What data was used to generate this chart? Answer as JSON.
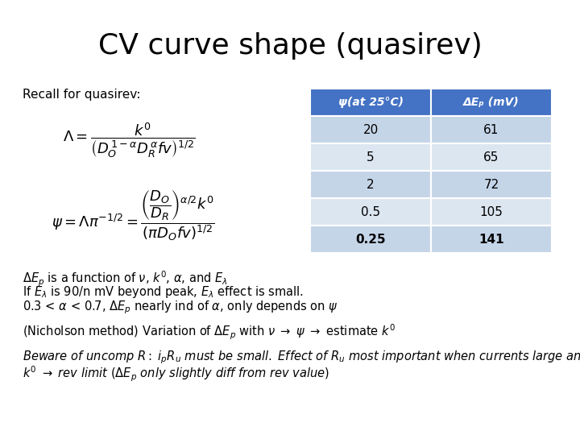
{
  "title": "CV curve shape (quasirev)",
  "title_fontsize": 26,
  "title_fontweight": "normal",
  "background_color": "#ffffff",
  "recall_label": "Recall for quasirev:",
  "table_header_col1": "ψ(at 25°C)",
  "table_header_col2": "ΔEₚ (mV)",
  "table_data": [
    [
      "20",
      "61"
    ],
    [
      "5",
      "65"
    ],
    [
      "2",
      "72"
    ],
    [
      "0.5",
      "105"
    ],
    [
      "0.25",
      "141"
    ]
  ],
  "table_header_bg": "#4472C4",
  "table_header_fg": "#ffffff",
  "table_row_bg": "#c5d5e8",
  "table_row_bg2": "#dce6f1",
  "body_fontsize": 10.5,
  "italic_fontsize": 10.5
}
